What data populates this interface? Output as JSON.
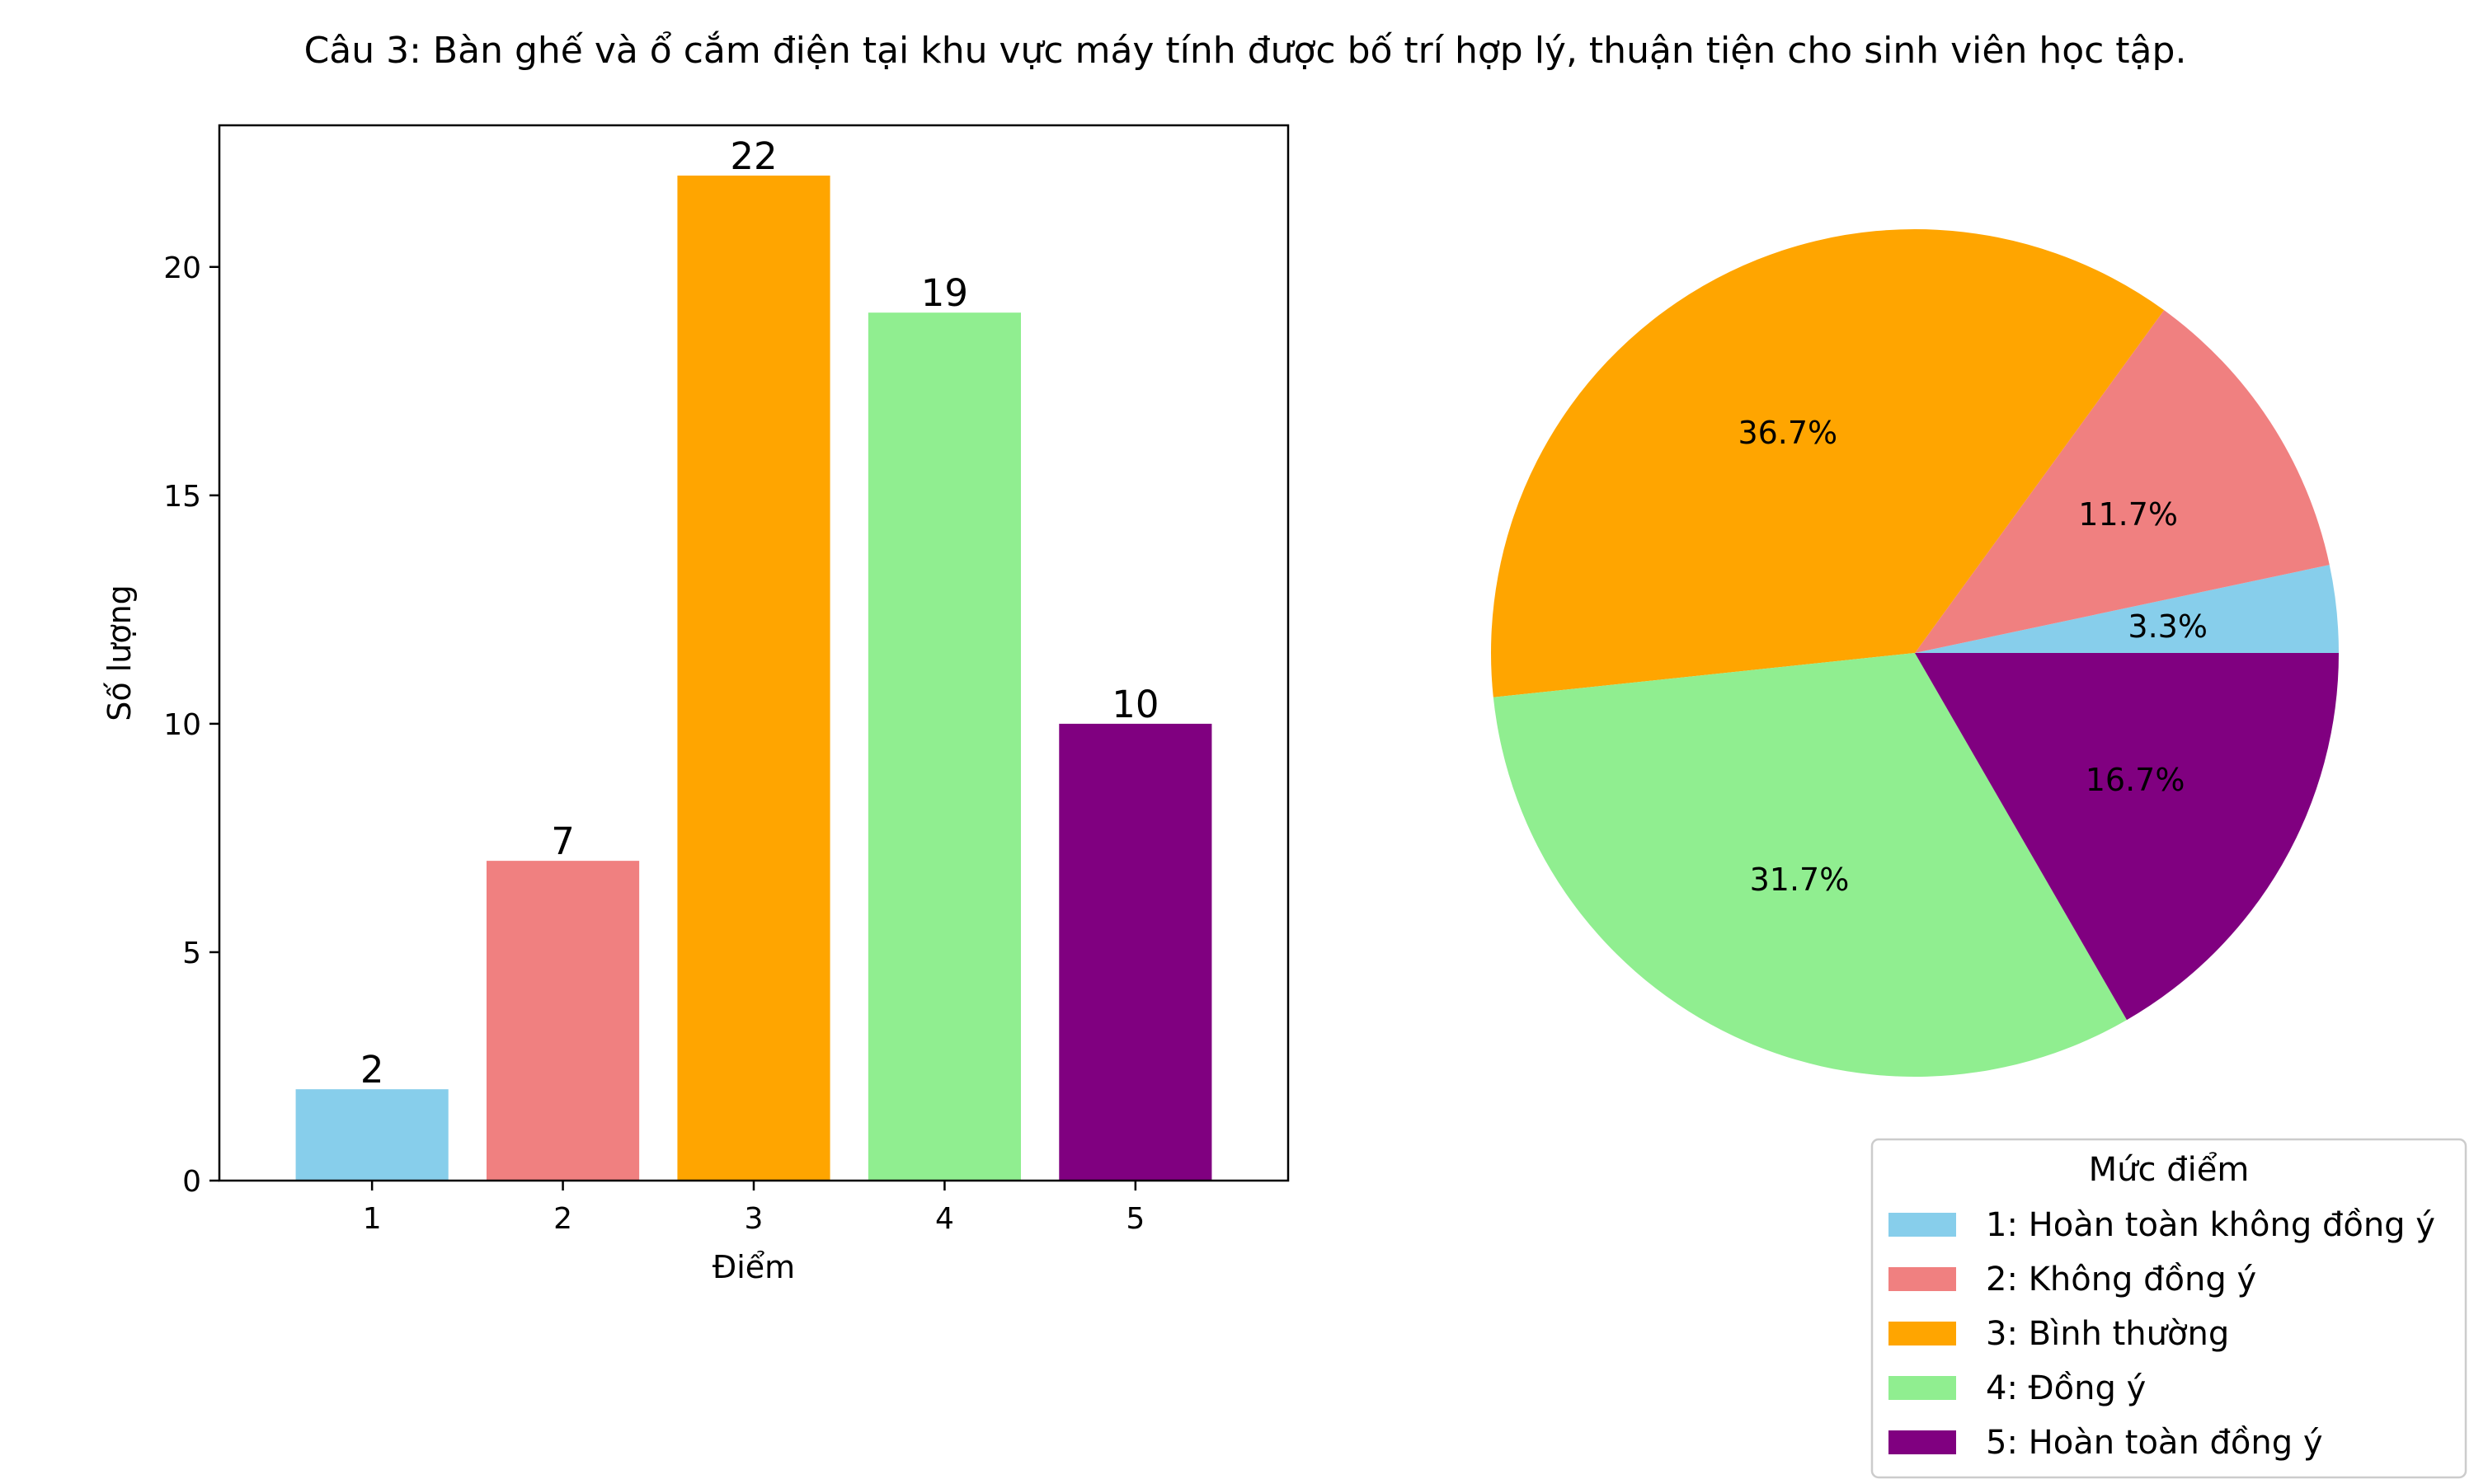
{
  "title": "Câu 3: Bàn ghế và ổ cắm điện tại khu vực máy tính được bố trí hợp lý, thuận tiện cho sinh viên học tập.",
  "chart_data": [
    {
      "type": "bar",
      "categories": [
        "1",
        "2",
        "3",
        "4",
        "5"
      ],
      "values": [
        2,
        7,
        22,
        19,
        10
      ],
      "colors": [
        "#87CEEB",
        "#F08080",
        "#FFA500",
        "#90EE90",
        "#800080"
      ],
      "xlabel": "Điểm",
      "ylabel": "Số lượng",
      "ylim": [
        0,
        23.1
      ],
      "yticks": [
        0,
        5,
        10,
        15,
        20
      ],
      "grid": false
    },
    {
      "type": "pie",
      "labels": [
        "1: Hoàn toàn không đồng ý",
        "2: Không đồng ý",
        "3: Bình thường",
        "4: Đồng ý",
        "5: Hoàn toàn đồng ý"
      ],
      "values": [
        2,
        7,
        22,
        19,
        10
      ],
      "percent_labels": [
        "3.3%",
        "11.7%",
        "36.7%",
        "31.7%",
        "16.7%"
      ],
      "colors": [
        "#87CEEB",
        "#F08080",
        "#FFA500",
        "#90EE90",
        "#800080"
      ],
      "start_angle_deg": 0,
      "direction": "counterclockwise",
      "legend": {
        "title": "Mức điểm",
        "placement": "lower-right"
      }
    }
  ]
}
